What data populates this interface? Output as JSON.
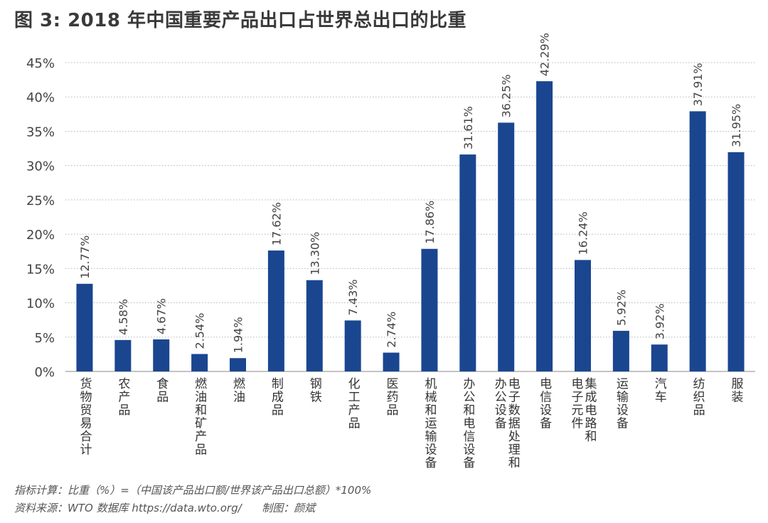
{
  "title": "图 3: 2018 年中国重要产品出口占世界总出口的比重",
  "footer": {
    "note": "指标计算：比重（%）=（中国该产品出口额/世界该产品出口总额）*100%",
    "source": "资料来源：WTO 数据库 https://data.wto.org/",
    "credit": "制图：颜斌"
  },
  "colors": {
    "bar": "#1a4690",
    "grid": "#b5b5b5",
    "text": "#333333"
  },
  "chart_data": {
    "type": "bar",
    "title": "图 3: 2018 年中国重要产品出口占世界总出口的比重",
    "xlabel": "",
    "ylabel": "",
    "ylim": [
      0,
      45
    ],
    "yticks": [
      "0%",
      "5%",
      "10%",
      "15%",
      "20%",
      "25%",
      "30%",
      "35%",
      "40%",
      "45%"
    ],
    "grid": true,
    "categories": [
      "货物贸易合计",
      "农产品",
      "食品",
      "燃油和矿产品",
      "燃油",
      "制成品",
      "钢铁",
      "化工产品",
      "医药品",
      "机械和运输设备",
      "办公和电信设备",
      "电子数据处理和办公设备",
      "电信设备",
      "集成电路和电子元件",
      "运输设备",
      "汽车",
      "纺织品",
      "服装"
    ],
    "category_label_columns": [
      [
        "货物贸易合计"
      ],
      [
        "农产品"
      ],
      [
        "食品"
      ],
      [
        "燃油和矿产品"
      ],
      [
        "燃油"
      ],
      [
        "制成品"
      ],
      [
        "钢铁"
      ],
      [
        "化工产品"
      ],
      [
        "医药品"
      ],
      [
        "机械和运输设备"
      ],
      [
        "办公和电信设备"
      ],
      [
        "电子数据处理和",
        "办公设备"
      ],
      [
        "电信设备"
      ],
      [
        "集成电路和",
        "电子元件"
      ],
      [
        "运输设备"
      ],
      [
        "汽车"
      ],
      [
        "纺织品"
      ],
      [
        "服装"
      ]
    ],
    "values": [
      12.77,
      4.58,
      4.67,
      2.54,
      1.94,
      17.62,
      13.3,
      7.43,
      2.74,
      17.86,
      31.61,
      36.25,
      42.29,
      16.24,
      5.92,
      3.92,
      37.91,
      31.95
    ],
    "data_labels": [
      "12.77%",
      "4.58%",
      "4.67%",
      "2.54%",
      "1.94%",
      "17.62%",
      "13.30%",
      "7.43%",
      "2.74%",
      "17.86%",
      "31.61%",
      "36.25%",
      "42.29%",
      "16.24%",
      "5.92%",
      "3.92%",
      "37.91%",
      "31.95%"
    ]
  }
}
